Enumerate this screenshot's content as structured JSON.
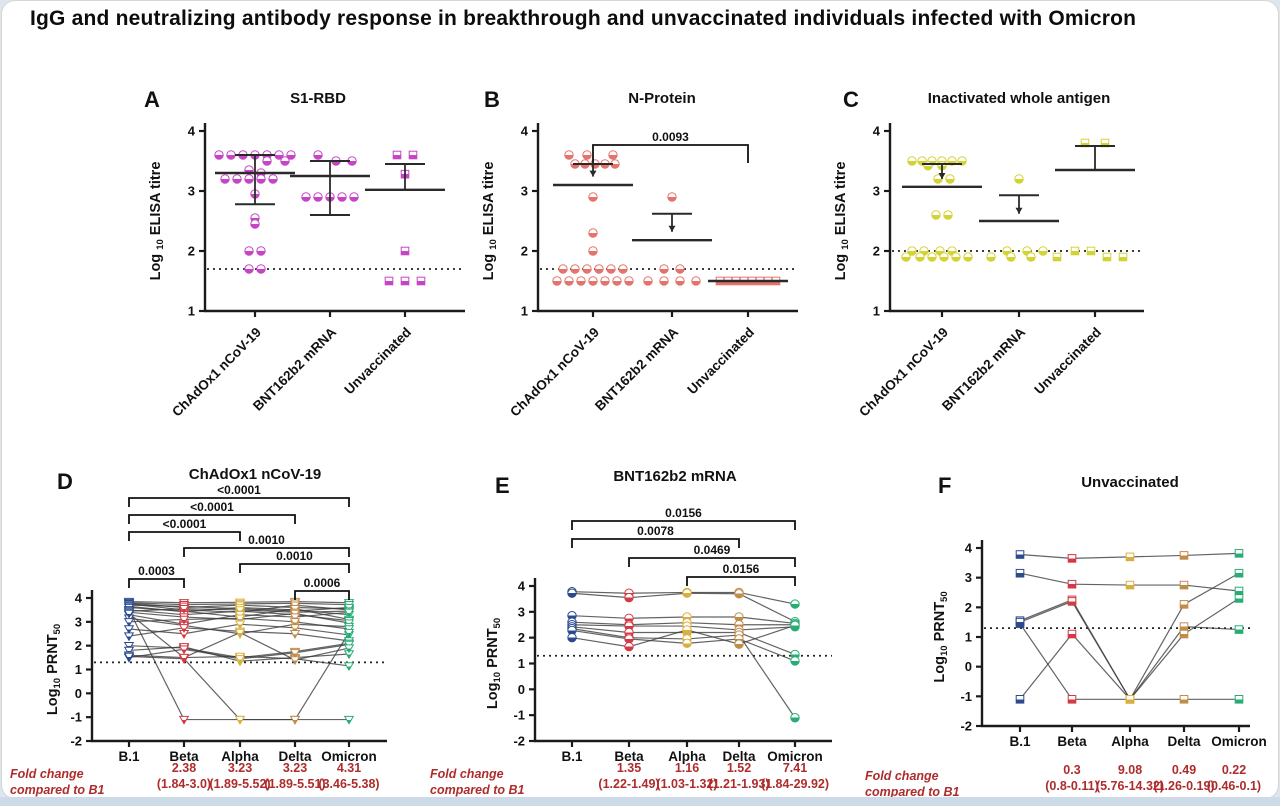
{
  "page": {
    "title": "IgG and neutralizing antibody response in breakthrough and unvaccinated individuals infected with Omicron",
    "fold_change_text_color": "#ae2c2c",
    "line_color": "#3c3c3c",
    "axis_color": "#1a1a1a"
  },
  "chart_data": [
    {
      "id": "A",
      "type": "scatter",
      "letter": "A",
      "title": "S1-RBD",
      "ylabel": "Log 10 ELISA titre",
      "ylabel_parts": [
        {
          "text": "Log ",
          "sub": false
        },
        {
          "text": "10",
          "sub": true
        },
        {
          "text": " ELISA titre",
          "sub": false
        }
      ],
      "ylim": [
        1,
        4
      ],
      "yticks": [
        4,
        3,
        2,
        1
      ],
      "threshold_y": 1.7,
      "categories": [
        "ChAdOx1 nCoV-19",
        "BNT162b2 mRNA",
        "Unvaccinated"
      ],
      "point_color": "#c645c6",
      "groups": [
        {
          "category": "ChAdOx1 nCoV-19",
          "marker": "circle",
          "values": [
            3.6,
            3.6,
            3.6,
            3.6,
            3.6,
            3.6,
            3.6,
            3.5,
            3.5,
            3.35,
            3.3,
            3.2,
            3.2,
            3.2,
            3.2,
            3.2,
            2.95,
            2.55,
            2.45,
            2.0,
            2.0,
            1.7,
            1.7
          ],
          "offsets": [
            -36,
            -24,
            -12,
            0,
            12,
            24,
            36,
            12,
            30,
            -6,
            6,
            -30,
            -18,
            -6,
            6,
            18,
            0,
            0,
            0,
            -6,
            6,
            -6,
            6
          ],
          "stats": {
            "mean": 3.3,
            "hi": 3.6,
            "lo": 2.78
          }
        },
        {
          "category": "BNT162b2 mRNA",
          "marker": "circle",
          "values": [
            3.6,
            3.5,
            3.5,
            2.9,
            2.9,
            2.9,
            2.9,
            2.9
          ],
          "offsets": [
            -12,
            6,
            22,
            -24,
            -12,
            0,
            12,
            24
          ],
          "stats": {
            "mean": 3.25,
            "hi": 3.5,
            "lo": 2.6
          }
        },
        {
          "category": "Unvaccinated",
          "marker": "square",
          "values": [
            3.6,
            3.6,
            3.28,
            2.0,
            1.5,
            1.5,
            1.5
          ],
          "offsets": [
            -8,
            8,
            0,
            0,
            -16,
            0,
            16
          ],
          "stats": {
            "mean": 3.02,
            "hi": 3.45
          }
        }
      ]
    },
    {
      "id": "B",
      "type": "scatter",
      "letter": "B",
      "title": "N-Protein",
      "ylabel": "Log 10 ELISA titre",
      "ylabel_parts": [
        {
          "text": "Log ",
          "sub": false
        },
        {
          "text": "10",
          "sub": true
        },
        {
          "text": " ELISA titre",
          "sub": false
        }
      ],
      "ylim": [
        1,
        4
      ],
      "yticks": [
        4,
        3,
        2,
        1
      ],
      "threshold_y": 1.7,
      "categories": [
        "ChAdOx1 nCoV-19",
        "BNT162b2 mRNA",
        "Unvaccinated"
      ],
      "point_color": "#e4736c",
      "pvalues": [
        {
          "from": "ChAdOx1 nCoV-19",
          "to": "Unvaccinated",
          "label": "0.0093",
          "row": 0
        }
      ],
      "groups": [
        {
          "category": "ChAdOx1 nCoV-19",
          "marker": "circle",
          "values": [
            3.6,
            3.6,
            3.6,
            3.45,
            3.45,
            3.45,
            3.45,
            3.45,
            2.9,
            2.3,
            2.0,
            1.7,
            1.7,
            1.7,
            1.7,
            1.7,
            1.7,
            1.5,
            1.5,
            1.5,
            1.5,
            1.5,
            1.5,
            1.5
          ],
          "offsets": [
            -24,
            -6,
            20,
            -18,
            -8,
            2,
            12,
            22,
            0,
            0,
            0,
            -30,
            -18,
            -6,
            6,
            18,
            30,
            -36,
            -24,
            -12,
            0,
            12,
            24,
            36
          ],
          "stats": {
            "mean": 3.1,
            "hi": 3.45,
            "arrow": 3.24
          }
        },
        {
          "category": "BNT162b2 mRNA",
          "marker": "circle",
          "values": [
            2.9,
            1.7,
            1.7,
            1.5,
            1.5,
            1.5,
            1.5
          ],
          "offsets": [
            0,
            -8,
            8,
            -24,
            -8,
            8,
            24
          ],
          "stats": {
            "mean": 2.18,
            "hi": 2.62,
            "arrow": 2.32
          }
        },
        {
          "category": "Unvaccinated",
          "marker": "square",
          "values": [
            1.5,
            1.5,
            1.5,
            1.5,
            1.5,
            1.5,
            1.5,
            1.5
          ],
          "offsets": [
            -28,
            -20,
            -12,
            -4,
            4,
            12,
            20,
            28
          ],
          "stats": {
            "mean": 1.5
          }
        }
      ]
    },
    {
      "id": "C",
      "type": "scatter",
      "letter": "C",
      "title": "Inactivated whole antigen",
      "ylabel": "Log 10 ELISA titre",
      "ylabel_parts": [
        {
          "text": "Log ",
          "sub": false
        },
        {
          "text": "10",
          "sub": true
        },
        {
          "text": " ELISA titre",
          "sub": false
        }
      ],
      "ylim": [
        1,
        4
      ],
      "yticks": [
        4,
        3,
        2,
        1
      ],
      "threshold_y": 2.0,
      "categories": [
        "ChAdOx1 nCoV-19",
        "BNT162b2 mRNA",
        "Unvaccinated"
      ],
      "point_color": "#d3d335",
      "groups": [
        {
          "category": "ChAdOx1 nCoV-19",
          "marker": "circle",
          "values": [
            3.5,
            3.5,
            3.5,
            3.5,
            3.5,
            3.5,
            3.42,
            3.42,
            3.2,
            3.2,
            2.6,
            2.6,
            2.0,
            2.0,
            2.0,
            2.0,
            1.9,
            1.9,
            1.9,
            1.9,
            1.9,
            1.9
          ],
          "offsets": [
            -30,
            -20,
            -10,
            0,
            10,
            20,
            -14,
            0,
            -4,
            8,
            -6,
            6,
            -30,
            -18,
            -2,
            10,
            -36,
            -22,
            -10,
            2,
            14,
            26
          ],
          "stats": {
            "mean": 3.07,
            "hi": 3.45,
            "arrow": 3.2
          }
        },
        {
          "category": "BNT162b2 mRNA",
          "marker": "circle",
          "values": [
            3.2,
            2.0,
            2.0,
            2.0,
            1.9,
            1.9,
            1.9
          ],
          "offsets": [
            0,
            -12,
            8,
            24,
            -28,
            -8,
            12
          ],
          "stats": {
            "mean": 2.5,
            "hi": 2.93,
            "arrow": 2.62
          }
        },
        {
          "category": "Unvaccinated",
          "marker": "square",
          "values": [
            3.8,
            3.8,
            2.0,
            2.0,
            1.9,
            1.9,
            1.9
          ],
          "offsets": [
            -10,
            10,
            -20,
            -4,
            -38,
            12,
            28
          ],
          "stats": {
            "mean": 3.35,
            "hi": 3.75
          }
        }
      ]
    },
    {
      "id": "D",
      "type": "paired",
      "letter": "D",
      "title": "ChAdOx1 nCoV-19",
      "ylabel": "Log10 PRNT50",
      "ylabel_parts": [
        {
          "text": "Log",
          "sub": false
        },
        {
          "text": "10",
          "sub": true
        },
        {
          "text": " PRNT",
          "sub": false
        },
        {
          "text": "50",
          "sub": true
        }
      ],
      "ylim": [
        -2,
        4
      ],
      "yticks": [
        4,
        3,
        2,
        1,
        0,
        -1,
        -2
      ],
      "threshold_y": 1.3,
      "categories": [
        "B.1",
        "Beta",
        "Alpha",
        "Delta",
        "Omicron"
      ],
      "category_colors": [
        "#2b4b8f",
        "#d43a44",
        "#d9af3e",
        "#c18c4a",
        "#27ad74"
      ],
      "marker": "triangle",
      "series": [
        [
          3.85,
          3.8,
          3.82,
          3.85,
          3.8
        ],
        [
          3.8,
          3.72,
          3.75,
          3.78,
          3.72
        ],
        [
          3.78,
          3.6,
          3.7,
          3.6,
          3.55
        ],
        [
          3.75,
          3.5,
          3.4,
          3.7,
          3.5
        ],
        [
          3.7,
          3.65,
          3.55,
          3.45,
          3.6
        ],
        [
          3.65,
          3.42,
          3.6,
          3.5,
          3.3
        ],
        [
          3.6,
          3.45,
          3.2,
          3.55,
          3.1
        ],
        [
          3.5,
          -1.1,
          -1.1,
          -1.1,
          -1.1
        ],
        [
          3.5,
          3.3,
          3.45,
          3.3,
          3.05
        ],
        [
          3.45,
          3.55,
          3.5,
          3.4,
          3.45
        ],
        [
          3.4,
          3.2,
          3.1,
          3.35,
          2.95
        ],
        [
          3.3,
          2.9,
          3.3,
          3.2,
          3.4
        ],
        [
          3.15,
          2.85,
          2.5,
          2.9,
          2.8
        ],
        [
          3.0,
          3.1,
          3.15,
          3.0,
          2.7
        ],
        [
          2.7,
          2.5,
          2.9,
          2.75,
          2.45
        ],
        [
          2.4,
          2.75,
          2.6,
          2.5,
          2.2
        ],
        [
          2.0,
          1.9,
          1.5,
          1.75,
          2.1
        ],
        [
          1.8,
          1.95,
          1.35,
          1.5,
          1.65
        ],
        [
          1.6,
          1.5,
          1.55,
          1.45,
          1.15
        ],
        [
          1.5,
          1.85,
          1.45,
          1.7,
          2.05
        ],
        [
          1.55,
          1.45,
          -1.1,
          -1.1,
          2.55
        ],
        [
          3.35,
          1.5,
          2.55,
          1.4,
          1.9
        ]
      ],
      "pvalues": [
        {
          "from": "B.1",
          "to": "Omicron",
          "label": "<0.0001",
          "row": 0
        },
        {
          "from": "B.1",
          "to": "Delta",
          "label": "<0.0001",
          "row": 1
        },
        {
          "from": "B.1",
          "to": "Alpha",
          "label": "<0.0001",
          "row": 2
        },
        {
          "from": "Beta",
          "to": "Omicron",
          "label": "0.0010",
          "row": 3
        },
        {
          "from": "Alpha",
          "to": "Omicron",
          "label": "0.0010",
          "row": 4
        },
        {
          "from": "B.1",
          "to": "Beta",
          "label": "0.0003",
          "row": 5
        },
        {
          "from": "Delta",
          "to": "Omicron",
          "label": "0.0006",
          "row": 6
        }
      ],
      "fold_change": {
        "label": "Fold change compared to B1",
        "entries": [
          {
            "category": "Beta",
            "fold": "2.38",
            "ci": "(1.84-3.0)"
          },
          {
            "category": "Alpha",
            "fold": "3.23",
            "ci": "(1.89-5.52)"
          },
          {
            "category": "Delta",
            "fold": "3.23",
            "ci": "(1.89-5.51)"
          },
          {
            "category": "Omicron",
            "fold": "4.31",
            "ci": "(3.46-5.38)"
          }
        ]
      }
    },
    {
      "id": "E",
      "type": "paired",
      "letter": "E",
      "title": "BNT162b2 mRNA",
      "ylabel": "Log10 PRNT50",
      "ylabel_parts": [
        {
          "text": "Log",
          "sub": false
        },
        {
          "text": "10",
          "sub": true
        },
        {
          "text": " PRNT",
          "sub": false
        },
        {
          "text": "50",
          "sub": true
        }
      ],
      "ylim": [
        -2,
        4
      ],
      "yticks": [
        4,
        3,
        2,
        1,
        0,
        -1,
        -2
      ],
      "threshold_y": 1.3,
      "categories": [
        "B.1",
        "Beta",
        "Alpha",
        "Delta",
        "Omicron"
      ],
      "category_colors": [
        "#2b4b8f",
        "#d43a44",
        "#d9af3e",
        "#c18c4a",
        "#27ad74"
      ],
      "marker": "circle",
      "series": [
        [
          3.78,
          3.72,
          3.75,
          3.75,
          3.3
        ],
        [
          3.72,
          3.55,
          3.72,
          3.7,
          2.62
        ],
        [
          2.85,
          2.75,
          2.8,
          2.8,
          2.55
        ],
        [
          2.6,
          2.5,
          2.58,
          2.5,
          2.5
        ],
        [
          2.5,
          2.45,
          2.45,
          2.3,
          2.42
        ],
        [
          2.42,
          2.2,
          2.2,
          2.2,
          1.35
        ],
        [
          2.35,
          2.0,
          1.95,
          2.1,
          -1.1
        ],
        [
          2.28,
          1.95,
          1.78,
          1.95,
          1.1
        ],
        [
          2.0,
          1.65,
          2.3,
          1.75,
          2.48
        ]
      ],
      "pvalues": [
        {
          "from": "B.1",
          "to": "Omicron",
          "label": "0.0156",
          "row": 0
        },
        {
          "from": "B.1",
          "to": "Delta",
          "label": "0.0078",
          "row": 1
        },
        {
          "from": "Beta",
          "to": "Omicron",
          "label": "0.0469",
          "row": 2
        },
        {
          "from": "Alpha",
          "to": "Omicron",
          "label": "0.0156",
          "row": 3
        }
      ],
      "fold_change": {
        "label": "Fold change compared to B1",
        "entries": [
          {
            "category": "Beta",
            "fold": "1.35",
            "ci": "(1.22-1.49)"
          },
          {
            "category": "Alpha",
            "fold": "1.16",
            "ci": "(1.03-1.32)"
          },
          {
            "category": "Delta",
            "fold": "1.52",
            "ci": "(1.21-1.93)"
          },
          {
            "category": "Omicron",
            "fold": "7.41",
            "ci": "(1.84-29.92)"
          }
        ]
      }
    },
    {
      "id": "F",
      "type": "paired",
      "letter": "F",
      "title": "Unvaccinated",
      "ylabel": "Log10 PRNT50",
      "ylabel_parts": [
        {
          "text": "Log",
          "sub": false
        },
        {
          "text": "10",
          "sub": true
        },
        {
          "text": " PRNT",
          "sub": false
        },
        {
          "text": "50",
          "sub": true
        }
      ],
      "ylim": [
        -2,
        4
      ],
      "yticks": [
        4,
        3,
        2,
        1,
        0,
        -1,
        -2
      ],
      "threshold_y": 1.3,
      "categories": [
        "B.1",
        "Beta",
        "Alpha",
        "Delta",
        "Omicron"
      ],
      "category_colors": [
        "#2b4b8f",
        "#d43a44",
        "#d9af3e",
        "#c18c4a",
        "#27ad74"
      ],
      "marker": "square",
      "series": [
        [
          3.78,
          3.65,
          3.7,
          3.75,
          3.82
        ],
        [
          3.15,
          2.78,
          2.75,
          2.75,
          2.55
        ],
        [
          1.55,
          2.25,
          -1.1,
          2.1,
          3.15
        ],
        [
          1.45,
          -1.1,
          -1.1,
          -1.1,
          -1.1
        ],
        [
          -1.1,
          1.1,
          -1.1,
          1.35,
          1.25
        ],
        [
          1.5,
          2.2,
          -1.1,
          1.1,
          2.3
        ]
      ],
      "pvalues": [],
      "fold_change": {
        "label": "Fold change compared to B1",
        "entries": [
          {
            "category": "Beta",
            "fold": "0.3",
            "ci": "(0.8-0.11)"
          },
          {
            "category": "Alpha",
            "fold": "9.08",
            "ci": "(5.76-14.32)"
          },
          {
            "category": "Delta",
            "fold": "0.49",
            "ci": "(1.26-0.19)"
          },
          {
            "category": "Omicron",
            "fold": "0.22",
            "ci": "(0.46-0.1)"
          }
        ]
      }
    }
  ]
}
